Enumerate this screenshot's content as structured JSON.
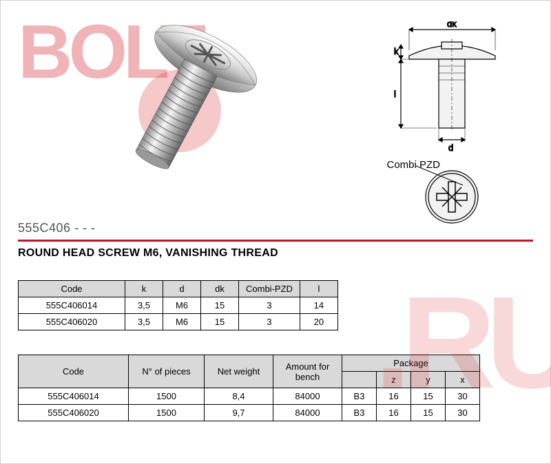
{
  "product": {
    "code": "555C406 - - -",
    "title": "ROUND HEAD SCREW M6, VANISHING THREAD"
  },
  "diagram": {
    "labels": {
      "dk": "dk",
      "k": "k",
      "l": "l",
      "d": "d"
    },
    "combi_label": "Combi PZD"
  },
  "table_dims": {
    "columns": [
      "Code",
      "k",
      "d",
      "dk",
      "Combi-PZD",
      "l"
    ],
    "rows": [
      [
        "555C406014",
        "3,5",
        "M6",
        "15",
        "3",
        "14"
      ],
      [
        "555C406020",
        "3,5",
        "M6",
        "15",
        "3",
        "20"
      ]
    ]
  },
  "table_pkg": {
    "columns": [
      "Code",
      "N° of pieces",
      "Net weight",
      "Amount for bench"
    ],
    "pkg_group": "Package",
    "pkg_sub": [
      "",
      "z",
      "y",
      "x"
    ],
    "rows": [
      [
        "555C406014",
        "1500",
        "8,4",
        "84000",
        "B3",
        "16",
        "15",
        "30"
      ],
      [
        "555C406020",
        "1500",
        "9,7",
        "84000",
        "B3",
        "16",
        "15",
        "30"
      ]
    ]
  },
  "watermark": {
    "bolt": "BOLT",
    "ru": ".RU"
  },
  "colors": {
    "accent": "#b01e2d",
    "header_bg": "#d9d9d9",
    "wm_red": "rgba(215,40,45,0.3)"
  }
}
